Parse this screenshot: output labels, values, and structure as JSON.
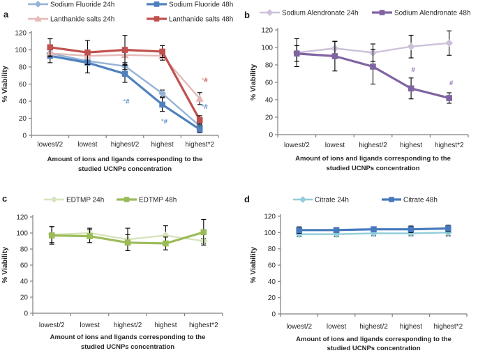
{
  "figure": {
    "background": "#ffffff",
    "axis_color": "#7f7f7f",
    "error_bar_color": "#000000",
    "text_color": "#262626",
    "ylabel": "% Viability",
    "xlabel_line1": "Amount of ions and ligands corresponding to the",
    "xlabel_line2": "studied UCNPs concentration"
  },
  "chart_data": [
    {
      "panel": "a",
      "type": "line",
      "categories": [
        "lowest/2",
        "lowest",
        "highest/2",
        "highest",
        "highest*2"
      ],
      "ylim": [
        0,
        120
      ],
      "yticks": [
        0,
        20,
        40,
        60,
        80,
        100,
        120
      ],
      "ylabel": "% Viability",
      "xlabel": "Amount of ions and ligands corresponding to the studied UCNPs concentration",
      "grid": false,
      "legend_position": "top",
      "series": [
        {
          "name": "Sodium Fluoride 24h",
          "marker": "diamond",
          "color": "#95B3D7",
          "line_width": 2.4,
          "values": [
            96,
            87,
            81,
            49,
            11
          ],
          "errors": [
            4,
            4,
            4,
            4,
            3
          ]
        },
        {
          "name": "Sodium Fluoride 48h",
          "marker": "square",
          "color": "#4F81BD",
          "line_width": 3.2,
          "values": [
            93,
            85,
            72,
            36,
            7
          ],
          "errors": [
            8,
            12,
            10,
            8,
            4
          ]
        },
        {
          "name": "Lanthanide salts 24h",
          "marker": "triangle",
          "color": "#E5B9B7",
          "line_width": 2.4,
          "values": [
            96,
            93,
            94,
            93,
            43
          ],
          "errors": [
            4,
            3,
            3,
            5,
            7
          ]
        },
        {
          "name": "Lanthanide salts 48h",
          "marker": "square",
          "color": "#C0504D",
          "line_width": 3.2,
          "values": [
            103,
            97,
            100,
            98,
            18
          ],
          "errors": [
            10,
            14,
            17,
            7,
            5
          ]
        }
      ],
      "annotations": [
        {
          "cat_index": 2,
          "value": 37,
          "dx": 2,
          "parts": [
            {
              "text": "*",
              "color": "#95B3D7"
            },
            {
              "text": "#",
              "color": "#4F81BD"
            }
          ]
        },
        {
          "cat_index": 3,
          "value": 14,
          "dx": 3,
          "parts": [
            {
              "text": "*",
              "color": "#95B3D7"
            },
            {
              "text": "#",
              "color": "#4F81BD"
            }
          ]
        },
        {
          "cat_index": 4,
          "value": 62,
          "dx": 7,
          "parts": [
            {
              "text": "*",
              "color": "#E5B9B7"
            },
            {
              "text": "#",
              "color": "#C0504D"
            }
          ]
        },
        {
          "cat_index": 4,
          "value": 31,
          "dx": 7,
          "parts": [
            {
              "text": "*",
              "color": "#95B3D7"
            },
            {
              "text": "#",
              "color": "#4F81BD"
            }
          ]
        }
      ]
    },
    {
      "panel": "b",
      "type": "line",
      "categories": [
        "lowest/2",
        "lowest",
        "highest/2",
        "highest",
        "highest*2"
      ],
      "ylim": [
        0,
        120
      ],
      "yticks": [
        0,
        20,
        40,
        60,
        80,
        100,
        120
      ],
      "ylabel": "% Viability",
      "xlabel": "Amount of ions and ligands corresponding to the studied UCNPs concentration",
      "grid": false,
      "legend_position": "top",
      "series": [
        {
          "name": "Sodium Alendronate 24h",
          "marker": "diamond",
          "color": "#CCC1D9",
          "line_width": 2.4,
          "values": [
            94,
            99,
            94,
            101,
            105
          ],
          "errors": [
            16,
            8,
            10,
            13,
            14
          ]
        },
        {
          "name": "Sodium Alendronate 48h",
          "marker": "square",
          "color": "#8064A2",
          "line_width": 3.2,
          "values": [
            93,
            90,
            78,
            53,
            42
          ],
          "errors": [
            9,
            17,
            20,
            12,
            6
          ]
        }
      ],
      "annotations": [
        {
          "cat_index": 3,
          "value": 72,
          "dx": 3,
          "parts": [
            {
              "text": "#",
              "color": "#8B6BB1"
            }
          ]
        },
        {
          "cat_index": 4,
          "value": 57,
          "dx": 3,
          "parts": [
            {
              "text": "#",
              "color": "#8B6BB1"
            }
          ]
        }
      ]
    },
    {
      "panel": "c",
      "type": "line",
      "categories": [
        "lowest/2",
        "lowest",
        "highest/2",
        "highest",
        "highest*2"
      ],
      "ylim": [
        0,
        120
      ],
      "yticks": [
        0,
        20,
        40,
        60,
        80,
        100,
        120
      ],
      "ylabel": "% Viability",
      "xlabel": "Amount of ions and ligands corresponding to the studied UCNPs concentration",
      "grid": false,
      "legend_position": "top",
      "series": [
        {
          "name": "EDTMP 24h",
          "marker": "diamond",
          "color": "#D7E4BC",
          "line_width": 2.4,
          "values": [
            98,
            100,
            92,
            97,
            90
          ],
          "errors": [
            10,
            6,
            14,
            12,
            3
          ]
        },
        {
          "name": "EDTMP 48h",
          "marker": "square",
          "color": "#9BBB59",
          "line_width": 3.2,
          "values": [
            97,
            96,
            88,
            87,
            101
          ],
          "errors": [
            11,
            8,
            10,
            8,
            16
          ]
        }
      ],
      "annotations": []
    },
    {
      "panel": "d",
      "type": "line",
      "categories": [
        "lowest/2",
        "lowest",
        "highest/2",
        "highest",
        "highest*2"
      ],
      "ylim": [
        0,
        120
      ],
      "yticks": [
        0,
        20,
        40,
        60,
        80,
        100,
        120
      ],
      "ylabel": "% Viability",
      "xlabel": "Amount of ions and ligands corresponding to the studied UCNPs concentration",
      "grid": false,
      "legend_position": "top",
      "series": [
        {
          "name": "Citrate 24h",
          "marker": "diamond",
          "color": "#92CDDC",
          "line_width": 2.4,
          "values": [
            98,
            98,
            99,
            99,
            100
          ],
          "errors": [
            3,
            3,
            3,
            3,
            4
          ]
        },
        {
          "name": "Citrate 48h",
          "marker": "square",
          "color": "#4779BD",
          "line_width": 3.2,
          "values": [
            103,
            103,
            104,
            104,
            105
          ],
          "errors": [
            4,
            3,
            3,
            4,
            4
          ]
        }
      ],
      "annotations": []
    }
  ]
}
